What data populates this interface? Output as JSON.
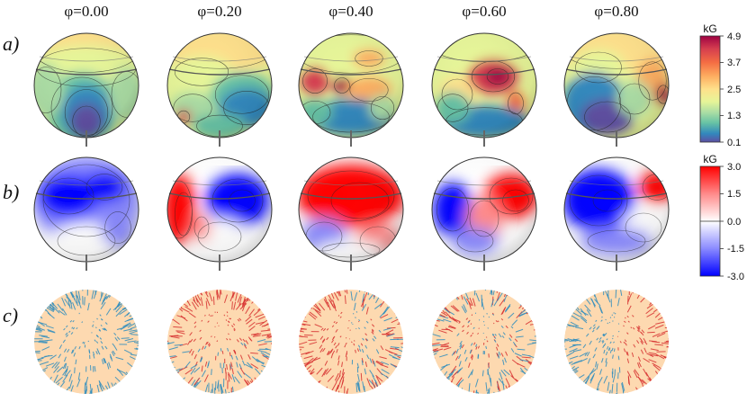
{
  "phases": [
    "φ=0.00",
    "φ=0.20",
    "φ=0.40",
    "φ=0.60",
    "φ=0.80"
  ],
  "row_labels": [
    "a)",
    "b)",
    "c)"
  ],
  "colorbars": {
    "modulus": {
      "unit": "kG",
      "ticks": [
        "4.9",
        "3.7",
        "2.5",
        "1.3",
        "0.1"
      ],
      "colors": [
        "#9e0142",
        "#d53e4f",
        "#f46d43",
        "#fdae61",
        "#fee08b",
        "#e6f598",
        "#abdda4",
        "#66c2a5",
        "#3288bd",
        "#5e4fa2"
      ]
    },
    "radial": {
      "unit": "kG",
      "ticks": [
        "3.0",
        "1.5",
        "0.0",
        "-1.5",
        "-3.0"
      ],
      "colors": [
        "#ff0000",
        "#ff8a8a",
        "#ffffff",
        "#8a8aff",
        "#0000ff"
      ]
    }
  },
  "vector_colors": {
    "outward": "#d62f2f",
    "inward": "#2b8cbe",
    "surface": "#fdd9b0"
  }
}
